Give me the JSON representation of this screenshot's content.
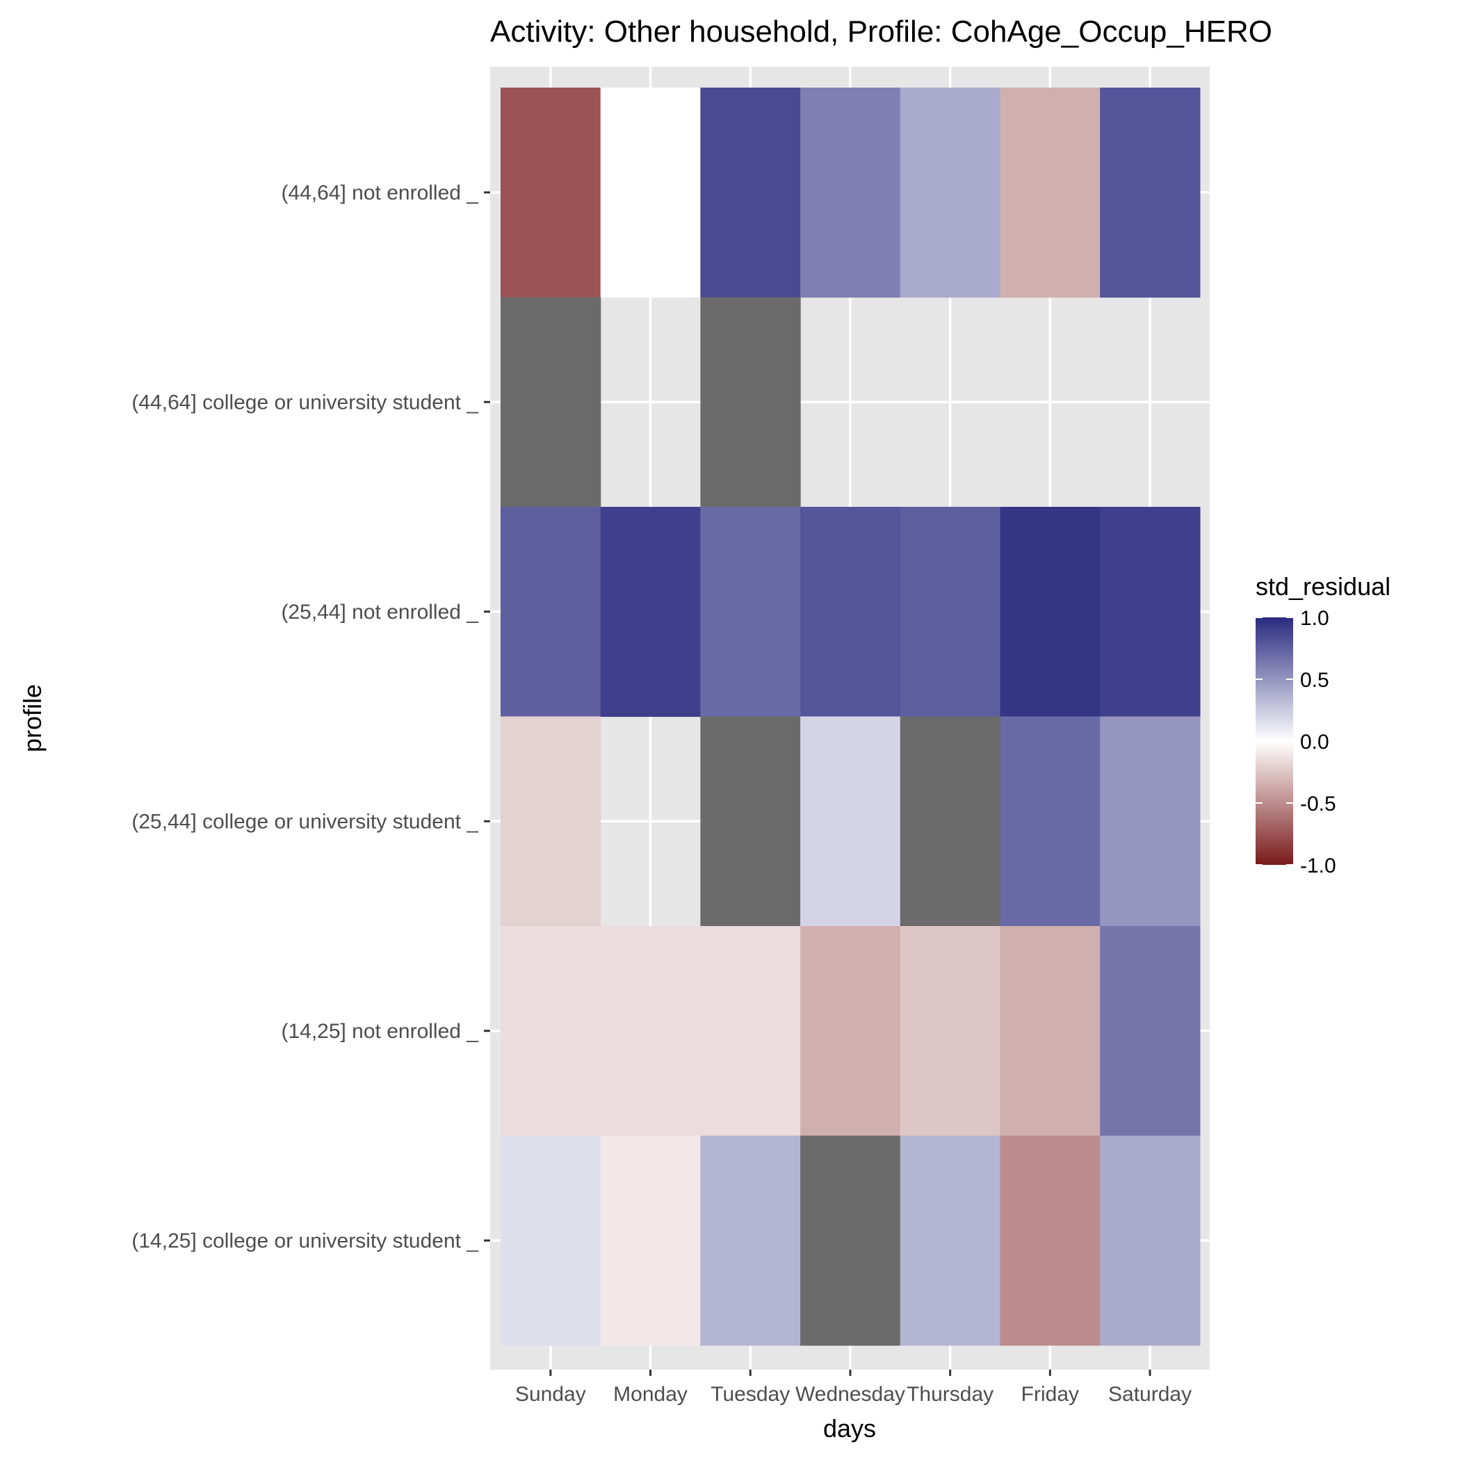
{
  "chart_data": {
    "type": "heatmap",
    "title": "Activity: Other household, Profile: CohAge_Occup_HERO",
    "xlabel": "days",
    "ylabel": "profile",
    "x_categories": [
      "Sunday",
      "Monday",
      "Tuesday",
      "Wednesday",
      "Thursday",
      "Friday",
      "Saturday"
    ],
    "y_categories": [
      "(44,64] not enrolled _",
      "(44,64] college or university student _",
      "(25,44] not enrolled _",
      "(25,44] college or university student _",
      "(14,25] not enrolled _",
      "(14,25] college or university student _"
    ],
    "values": [
      [
        -0.75,
        0.0,
        0.85,
        0.6,
        0.4,
        -0.35,
        0.8
      ],
      [
        null,
        "missing",
        null,
        "missing",
        "missing",
        "missing",
        "missing"
      ],
      [
        0.75,
        0.9,
        0.7,
        0.8,
        0.75,
        0.95,
        0.9
      ],
      [
        -0.2,
        "missing",
        null,
        0.2,
        null,
        0.7,
        0.5
      ],
      [
        -0.15,
        -0.15,
        -0.15,
        -0.35,
        -0.25,
        -0.35,
        0.65
      ],
      [
        0.15,
        -0.1,
        0.35,
        null,
        0.35,
        -0.5,
        0.4
      ]
    ],
    "na_color": "#6b6b6b",
    "panel_background": "#e6e6e6",
    "grid": true,
    "legend": {
      "title": "std_residual",
      "position": "right",
      "range": [
        -1.0,
        1.0
      ],
      "ticks": [
        1.0,
        0.5,
        0.0,
        -0.5,
        -1.0
      ],
      "tick_labels": [
        "1.0",
        "0.5",
        "0.0",
        "-0.5",
        "-1.0"
      ],
      "high_color": "#2a2a80",
      "mid_color": "#ffffff",
      "low_color": "#7a1a1a"
    }
  }
}
